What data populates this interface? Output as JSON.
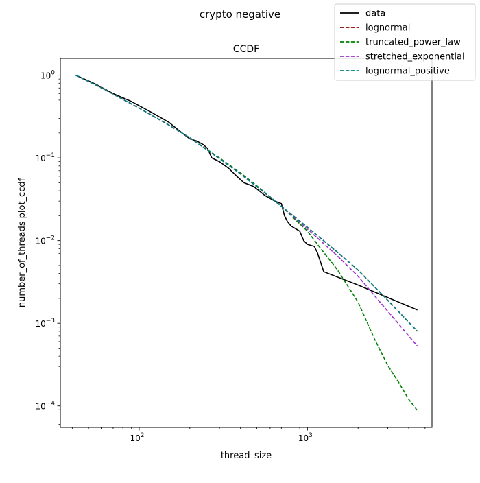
{
  "chart_data": {
    "type": "line",
    "suptitle": "crypto negative",
    "title": "CCDF",
    "xlabel": "thread_size",
    "ylabel": "number_of_threads plot_ccdf",
    "xscale": "log",
    "yscale": "log",
    "xlim": [
      34,
      5500
    ],
    "ylim": [
      5.5e-05,
      1.6
    ],
    "xticks": [
      {
        "value": 100,
        "base": "10",
        "exp": "2"
      },
      {
        "value": 1000,
        "base": "10",
        "exp": "3"
      }
    ],
    "yticks": [
      {
        "value": 1,
        "base": "10",
        "exp": "0"
      },
      {
        "value": 0.1,
        "base": "10",
        "exp": "−1"
      },
      {
        "value": 0.01,
        "base": "10",
        "exp": "−2"
      },
      {
        "value": 0.001,
        "base": "10",
        "exp": "−3"
      },
      {
        "value": 0.0001,
        "base": "10",
        "exp": "−4"
      }
    ],
    "grid": false,
    "legend_position": "top-right",
    "series": [
      {
        "name": "data",
        "color": "#000000",
        "dash": "solid",
        "x": [
          42,
          55,
          70,
          90,
          120,
          150,
          180,
          200,
          220,
          240,
          255,
          270,
          300,
          340,
          380,
          420,
          480,
          560,
          640,
          700,
          730,
          760,
          800,
          900,
          950,
          1000,
          1100,
          1150,
          1250,
          2000,
          4500
        ],
        "y": [
          1.0,
          0.78,
          0.6,
          0.48,
          0.35,
          0.27,
          0.2,
          0.17,
          0.16,
          0.145,
          0.13,
          0.1,
          0.09,
          0.075,
          0.06,
          0.05,
          0.045,
          0.035,
          0.03,
          0.028,
          0.02,
          0.017,
          0.015,
          0.013,
          0.01,
          0.009,
          0.0085,
          0.007,
          0.0042,
          0.0029,
          0.00145
        ]
      },
      {
        "name": "lognormal",
        "color": "#8b0000",
        "dash": "dashed",
        "x": [
          42,
          60,
          80,
          100,
          150,
          200,
          300,
          400,
          500,
          700,
          1000,
          1500,
          2000,
          3000,
          4500
        ],
        "y": [
          1.0,
          0.7,
          0.51,
          0.4,
          0.25,
          0.175,
          0.098,
          0.064,
          0.045,
          0.026,
          0.0145,
          0.0073,
          0.0044,
          0.0019,
          0.0008
        ]
      },
      {
        "name": "truncated_power_law",
        "color": "#008000",
        "dash": "dashed",
        "x": [
          42,
          60,
          80,
          100,
          150,
          200,
          300,
          400,
          500,
          700,
          1000,
          1200,
          1500,
          2000,
          2500,
          3000,
          3500,
          4000,
          4500
        ],
        "y": [
          1.0,
          0.7,
          0.51,
          0.4,
          0.25,
          0.175,
          0.1,
          0.066,
          0.046,
          0.026,
          0.013,
          0.008,
          0.0045,
          0.0018,
          0.00065,
          0.00031,
          0.00019,
          0.00012,
          8.8e-05
        ]
      },
      {
        "name": "stretched_exponential",
        "color": "#9932cc",
        "dash": "dashed",
        "x": [
          42,
          60,
          80,
          100,
          150,
          200,
          300,
          400,
          500,
          700,
          1000,
          1500,
          2000,
          3000,
          4500
        ],
        "y": [
          1.0,
          0.7,
          0.51,
          0.4,
          0.25,
          0.175,
          0.098,
          0.064,
          0.045,
          0.026,
          0.0138,
          0.0066,
          0.0037,
          0.0014,
          0.00053
        ]
      },
      {
        "name": "lognormal_positive",
        "color": "#008080",
        "dash": "dashed",
        "x": [
          42,
          60,
          80,
          100,
          150,
          200,
          300,
          400,
          500,
          700,
          1000,
          1500,
          2000,
          3000,
          4500
        ],
        "y": [
          1.0,
          0.7,
          0.51,
          0.4,
          0.25,
          0.175,
          0.098,
          0.064,
          0.045,
          0.026,
          0.0145,
          0.0073,
          0.0044,
          0.0019,
          0.0008
        ]
      }
    ]
  }
}
